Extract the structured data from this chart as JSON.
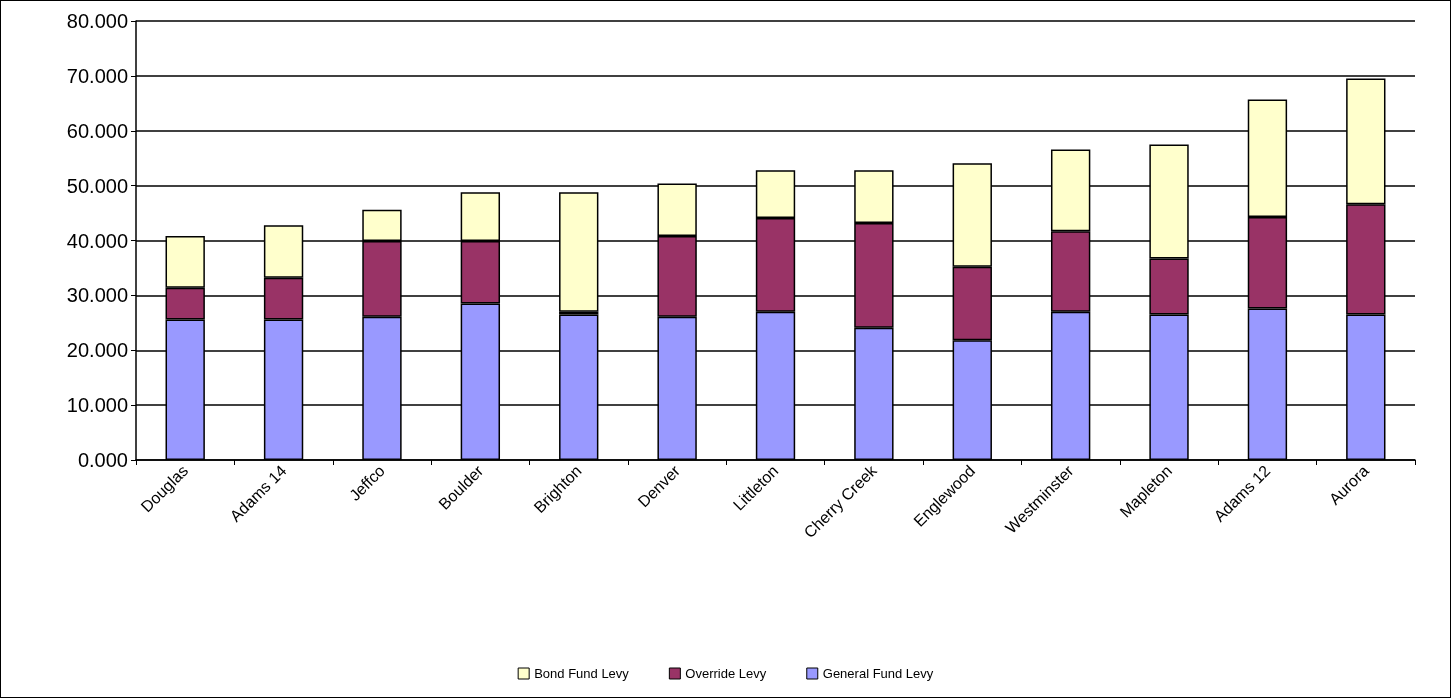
{
  "chart_data": {
    "type": "bar",
    "stacked": true,
    "categories": [
      "Douglas",
      "Adams 14",
      "Jeffco",
      "Boulder",
      "Brighton",
      "Denver",
      "Littleton",
      "Cherry Creek",
      "Englewood",
      "Westminster",
      "Mapleton",
      "Adams 12",
      "Aurora"
    ],
    "series": [
      {
        "name": "General Fund Levy",
        "color": "#9999ff",
        "values": [
          25.6,
          25.6,
          26.1,
          28.5,
          26.5,
          26.1,
          27.0,
          24.1,
          21.8,
          27.0,
          26.5,
          27.6,
          26.5
        ]
      },
      {
        "name": "Override Levy",
        "color": "#993366",
        "values": [
          5.8,
          7.6,
          13.8,
          11.4,
          0.5,
          14.7,
          17.1,
          19.1,
          13.4,
          14.7,
          10.2,
          16.7,
          20.1
        ]
      },
      {
        "name": "Bond Fund Levy",
        "color": "#ffffcc",
        "values": [
          9.4,
          9.6,
          5.7,
          8.9,
          21.8,
          9.6,
          8.7,
          9.6,
          18.9,
          14.9,
          20.8,
          21.4,
          22.9
        ]
      }
    ],
    "ylim": [
      0,
      80
    ],
    "yticks": [
      {
        "value": 0,
        "label": "0.000"
      },
      {
        "value": 10,
        "label": "10.000"
      },
      {
        "value": 20,
        "label": "20.000"
      },
      {
        "value": 30,
        "label": "30.000"
      },
      {
        "value": 40,
        "label": "40.000"
      },
      {
        "value": 50,
        "label": "50.000"
      },
      {
        "value": 60,
        "label": "60.000"
      },
      {
        "value": 70,
        "label": "70.000"
      },
      {
        "value": 80,
        "label": "80.000"
      }
    ],
    "grid": "y",
    "legend": "bottom"
  }
}
